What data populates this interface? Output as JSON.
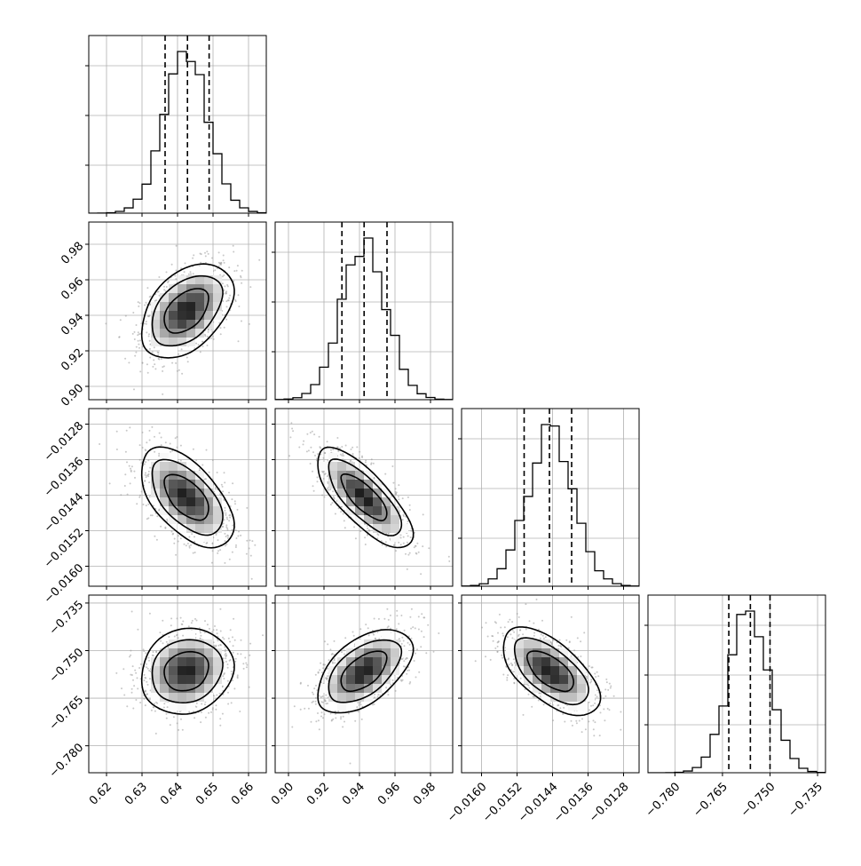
{
  "chart_data": {
    "type": "corner",
    "title": "",
    "grid": true,
    "parameters": [
      {
        "range": [
          0.615,
          0.665
        ],
        "ticks": [
          {
            "value": 0.62,
            "label": "0.62"
          },
          {
            "value": 0.63,
            "label": "0.63"
          },
          {
            "value": 0.64,
            "label": "0.64"
          },
          {
            "value": 0.65,
            "label": "0.65"
          },
          {
            "value": 0.66,
            "label": "0.66"
          }
        ],
        "quantiles": [
          0.6365,
          0.6428,
          0.6489
        ],
        "peak": 0.6425,
        "sigma": 0.0062
      },
      {
        "range": [
          0.8925,
          0.9925
        ],
        "ticks": [
          {
            "value": 0.9,
            "label": "0.90"
          },
          {
            "value": 0.92,
            "label": "0.92"
          },
          {
            "value": 0.94,
            "label": "0.94"
          },
          {
            "value": 0.96,
            "label": "0.96"
          },
          {
            "value": 0.98,
            "label": "0.98"
          }
        ],
        "quantiles": [
          0.9301,
          0.9426,
          0.9555
        ],
        "peak": 0.9425,
        "sigma": 0.0128
      },
      {
        "range": [
          -0.01645,
          -0.01245
        ],
        "ticks": [
          {
            "value": -0.016,
            "label": "−0.0160"
          },
          {
            "value": -0.0152,
            "label": "−0.0152"
          },
          {
            "value": -0.0144,
            "label": "−0.0144"
          },
          {
            "value": -0.0136,
            "label": "−0.0136"
          },
          {
            "value": -0.0128,
            "label": "−0.0128"
          }
        ],
        "quantiles": [
          -0.01504,
          -0.01447,
          -0.01397
        ],
        "peak": -0.01445,
        "sigma": 0.00052
      },
      {
        "range": [
          -0.7885,
          -0.7325
        ],
        "ticks": [
          {
            "value": -0.78,
            "label": "−0.780"
          },
          {
            "value": -0.765,
            "label": "−0.765"
          },
          {
            "value": -0.75,
            "label": "−0.750"
          },
          {
            "value": -0.735,
            "label": "−0.735"
          }
        ],
        "quantiles": [
          -0.763,
          -0.7562,
          -0.75
        ],
        "peak": -0.7565,
        "sigma": 0.0064
      }
    ],
    "correlations": [
      {
        "pair": [
          1,
          0
        ],
        "rho": 0.45
      },
      {
        "pair": [
          2,
          0
        ],
        "rho": -0.55
      },
      {
        "pair": [
          2,
          1
        ],
        "rho": -0.75
      },
      {
        "pair": [
          3,
          0
        ],
        "rho": 0.15
      },
      {
        "pair": [
          3,
          1
        ],
        "rho": 0.55
      },
      {
        "pair": [
          3,
          2
        ],
        "rho": -0.6
      }
    ]
  }
}
